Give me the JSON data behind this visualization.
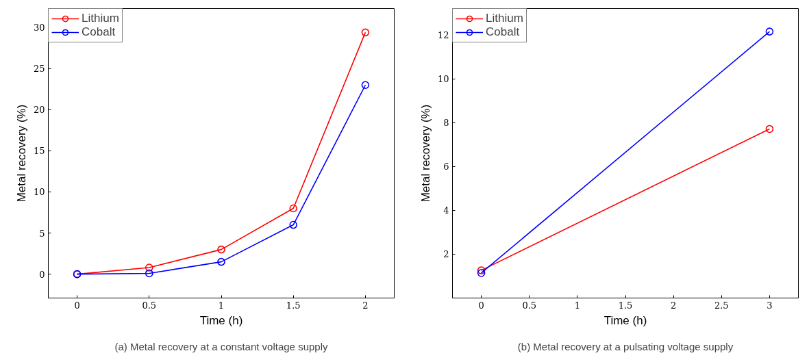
{
  "chart_data": [
    {
      "type": "line",
      "xlabel": "Time (h)",
      "ylabel": "Metal recovery (%)",
      "x": [
        0,
        0.5,
        1,
        1.5,
        2
      ],
      "series": [
        {
          "name": "Lithium",
          "color": "#ff0000",
          "values": [
            0,
            0.8,
            3.0,
            8.0,
            29.4
          ]
        },
        {
          "name": "Cobalt",
          "color": "#0000ff",
          "values": [
            0,
            0.1,
            1.5,
            6.0,
            23.0
          ]
        }
      ],
      "xlim": [
        -0.2,
        2.2
      ],
      "ylim": [
        -2.9,
        32.3
      ],
      "xticks": [
        0,
        0.5,
        1,
        1.5,
        2
      ],
      "yticks": [
        0,
        5,
        10,
        15,
        20,
        25,
        30
      ],
      "marker": "circle",
      "line_style": "solid",
      "grid": false,
      "legend": "top left",
      "annotations": [
        "(a) Metal recovery at a constant voltage supply"
      ]
    },
    {
      "type": "line",
      "xlabel": "Time (h)",
      "ylabel": "Metal recovery (%)",
      "x": [
        0,
        3
      ],
      "series": [
        {
          "name": "Lithium",
          "color": "#ff0000",
          "values": [
            1.26,
            7.71
          ]
        },
        {
          "name": "Cobalt",
          "color": "#0000ff",
          "values": [
            1.14,
            12.15
          ]
        }
      ],
      "xlim": [
        -0.3,
        3.3
      ],
      "ylim": [
        0,
        13.2
      ],
      "xticks": [
        0,
        0.5,
        1,
        1.5,
        2,
        2.5,
        3
      ],
      "yticks": [
        2,
        4,
        6,
        8,
        10,
        12
      ],
      "marker": "circle",
      "line_style": "solid",
      "grid": false,
      "legend": "top left",
      "annotations": [
        "(b) Metal recovery at a pulsating voltage supply"
      ]
    }
  ]
}
